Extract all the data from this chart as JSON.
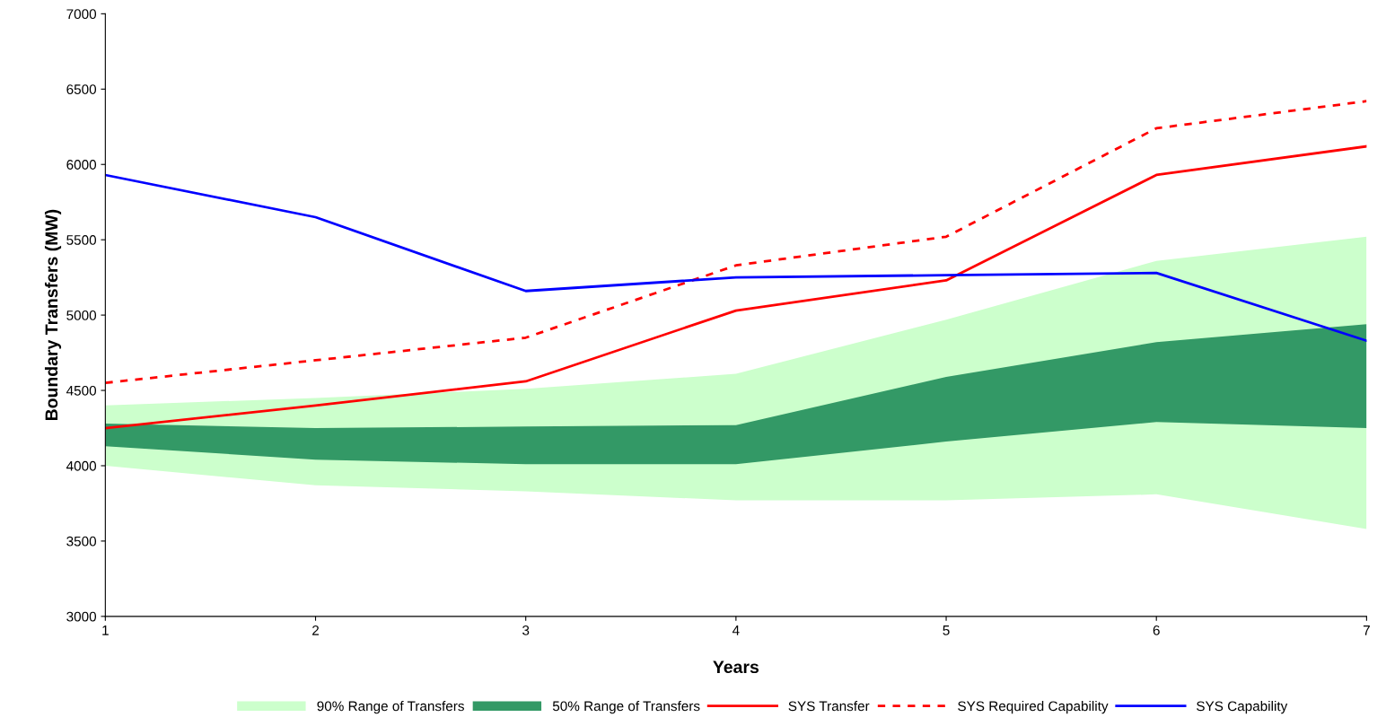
{
  "chart_data": {
    "type": "line",
    "xlabel": "Years",
    "ylabel": "Boundary Transfers (MW)",
    "x": [
      1,
      2,
      3,
      4,
      5,
      6,
      7
    ],
    "xlim": [
      1,
      7
    ],
    "xticks": [
      1,
      2,
      3,
      4,
      5,
      6,
      7
    ],
    "ylim": [
      3000,
      7000
    ],
    "yticks": [
      3000,
      3500,
      4000,
      4500,
      5000,
      5500,
      6000,
      6500,
      7000
    ],
    "grid": false,
    "legend": "bottom",
    "marker": "none",
    "series": [
      {
        "name": "90% Range of Transfers",
        "type": "area",
        "color": "#ccffcc",
        "values": [
          null,
          null,
          null,
          null,
          null,
          null,
          null
        ],
        "lower": [
          4000,
          3870,
          3830,
          3770,
          3770,
          3810,
          3580
        ],
        "upper": [
          4400,
          4450,
          4510,
          4610,
          4970,
          5360,
          5520
        ]
      },
      {
        "name": "50% Range of Transfers",
        "type": "area",
        "color": "#339966",
        "values": [
          null,
          null,
          null,
          null,
          null,
          null,
          null
        ],
        "lower": [
          4130,
          4040,
          4010,
          4010,
          4160,
          4290,
          4250
        ],
        "upper": [
          4280,
          4250,
          4260,
          4270,
          4590,
          4820,
          4940
        ]
      },
      {
        "name": "SYS Transfer",
        "type": "line",
        "color": "#ff0000",
        "line_style": "solid",
        "values": [
          4250,
          4400,
          4560,
          5030,
          5230,
          5930,
          6120
        ]
      },
      {
        "name": "SYS Required Capability",
        "type": "line",
        "color": "#ff0000",
        "line_style": "dotted",
        "values": [
          4550,
          4700,
          4850,
          5330,
          5520,
          6240,
          6420
        ]
      },
      {
        "name": "SYS Capability",
        "type": "line",
        "color": "#0000ff",
        "line_style": "solid",
        "values": [
          5930,
          5650,
          5160,
          5250,
          5265,
          5280,
          4830
        ]
      }
    ]
  }
}
